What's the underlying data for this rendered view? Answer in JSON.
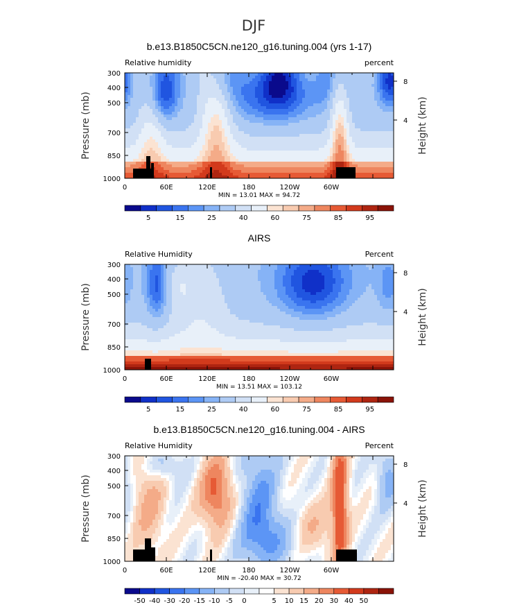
{
  "figure_title": "DJF",
  "colors": {
    "model_scale": [
      "#0a0a8c",
      "#1030c8",
      "#2055e0",
      "#3a74ef",
      "#5c95f5",
      "#86b3f6",
      "#aecbf4",
      "#d1e0f5",
      "#e8f0f9",
      "#fbe3d2",
      "#f8cbb0",
      "#f4ab88",
      "#ee865f",
      "#e65a35",
      "#d23a1c",
      "#ae2511",
      "#8a1308"
    ],
    "diff_scale": [
      "#0a0a8c",
      "#1030c8",
      "#2055e0",
      "#3a74ef",
      "#5c95f5",
      "#86b3f6",
      "#aecbf4",
      "#d1e0f5",
      "#e8f0f9",
      "#ffffff",
      "#fbe3d2",
      "#f8cbb0",
      "#f4ab88",
      "#ee865f",
      "#e65a35",
      "#d23a1c",
      "#ae2511",
      "#8a1308"
    ],
    "topography": "#000000"
  },
  "chart_data": [
    {
      "type": "heatmap",
      "title": "b.e13.B1850C5CN.ne120_g16.tuning.004 (yrs 1-17)",
      "left_label": "Relative humidity",
      "right_label": "percent",
      "xlabel": "",
      "ylabel": "Pressure (mb)",
      "ylabel_right": "Height (km)",
      "x_ticks": [
        "0",
        "60E",
        "120E",
        "180",
        "120W",
        "60W"
      ],
      "y_ticks": [
        "300",
        "400",
        "500",
        "700",
        "850",
        "1000"
      ],
      "y_ticks_right": [
        "8",
        "4"
      ],
      "stats": "MIN =   13.01   MAX =   94.72",
      "colorbar_labels": [
        "5",
        "15",
        "25",
        "40",
        "60",
        "75",
        "85",
        "95"
      ],
      "min": 13.01,
      "max": 94.72
    },
    {
      "type": "heatmap",
      "title": "AIRS",
      "left_label": "Relative Humidity",
      "right_label": "Percent",
      "xlabel": "",
      "ylabel": "Pressure (mb)",
      "ylabel_right": "Height (km)",
      "x_ticks": [
        "0",
        "60E",
        "120E",
        "180",
        "120W",
        "60W"
      ],
      "y_ticks": [
        "300",
        "400",
        "500",
        "700",
        "850",
        "1000"
      ],
      "y_ticks_right": [
        "8",
        "4"
      ],
      "stats": "MIN =   13.51   MAX = 103.12",
      "colorbar_labels": [
        "5",
        "15",
        "25",
        "40",
        "60",
        "75",
        "85",
        "95"
      ],
      "min": 13.51,
      "max": 103.12
    },
    {
      "type": "heatmap",
      "title": "b.e13.B1850C5CN.ne120_g16.tuning.004 - AIRS",
      "left_label": "Relative Humidity",
      "right_label": "Percent",
      "xlabel": "",
      "ylabel": "Pressure (mb)",
      "ylabel_right": "Height (km)",
      "x_ticks": [
        "0",
        "60E",
        "120E",
        "180",
        "120W",
        "60W"
      ],
      "y_ticks": [
        "300",
        "400",
        "500",
        "700",
        "850",
        "1000"
      ],
      "y_ticks_right": [
        "8",
        "4"
      ],
      "stats": "MIN = -20.40   MAX =   30.72",
      "colorbar_labels": [
        "-50",
        "-40",
        "-30",
        "-20",
        "-15",
        "-10",
        "-5",
        "0",
        "5",
        "10",
        "15",
        "20",
        "30",
        "40",
        "50"
      ],
      "min": -20.4,
      "max": 30.72
    }
  ]
}
